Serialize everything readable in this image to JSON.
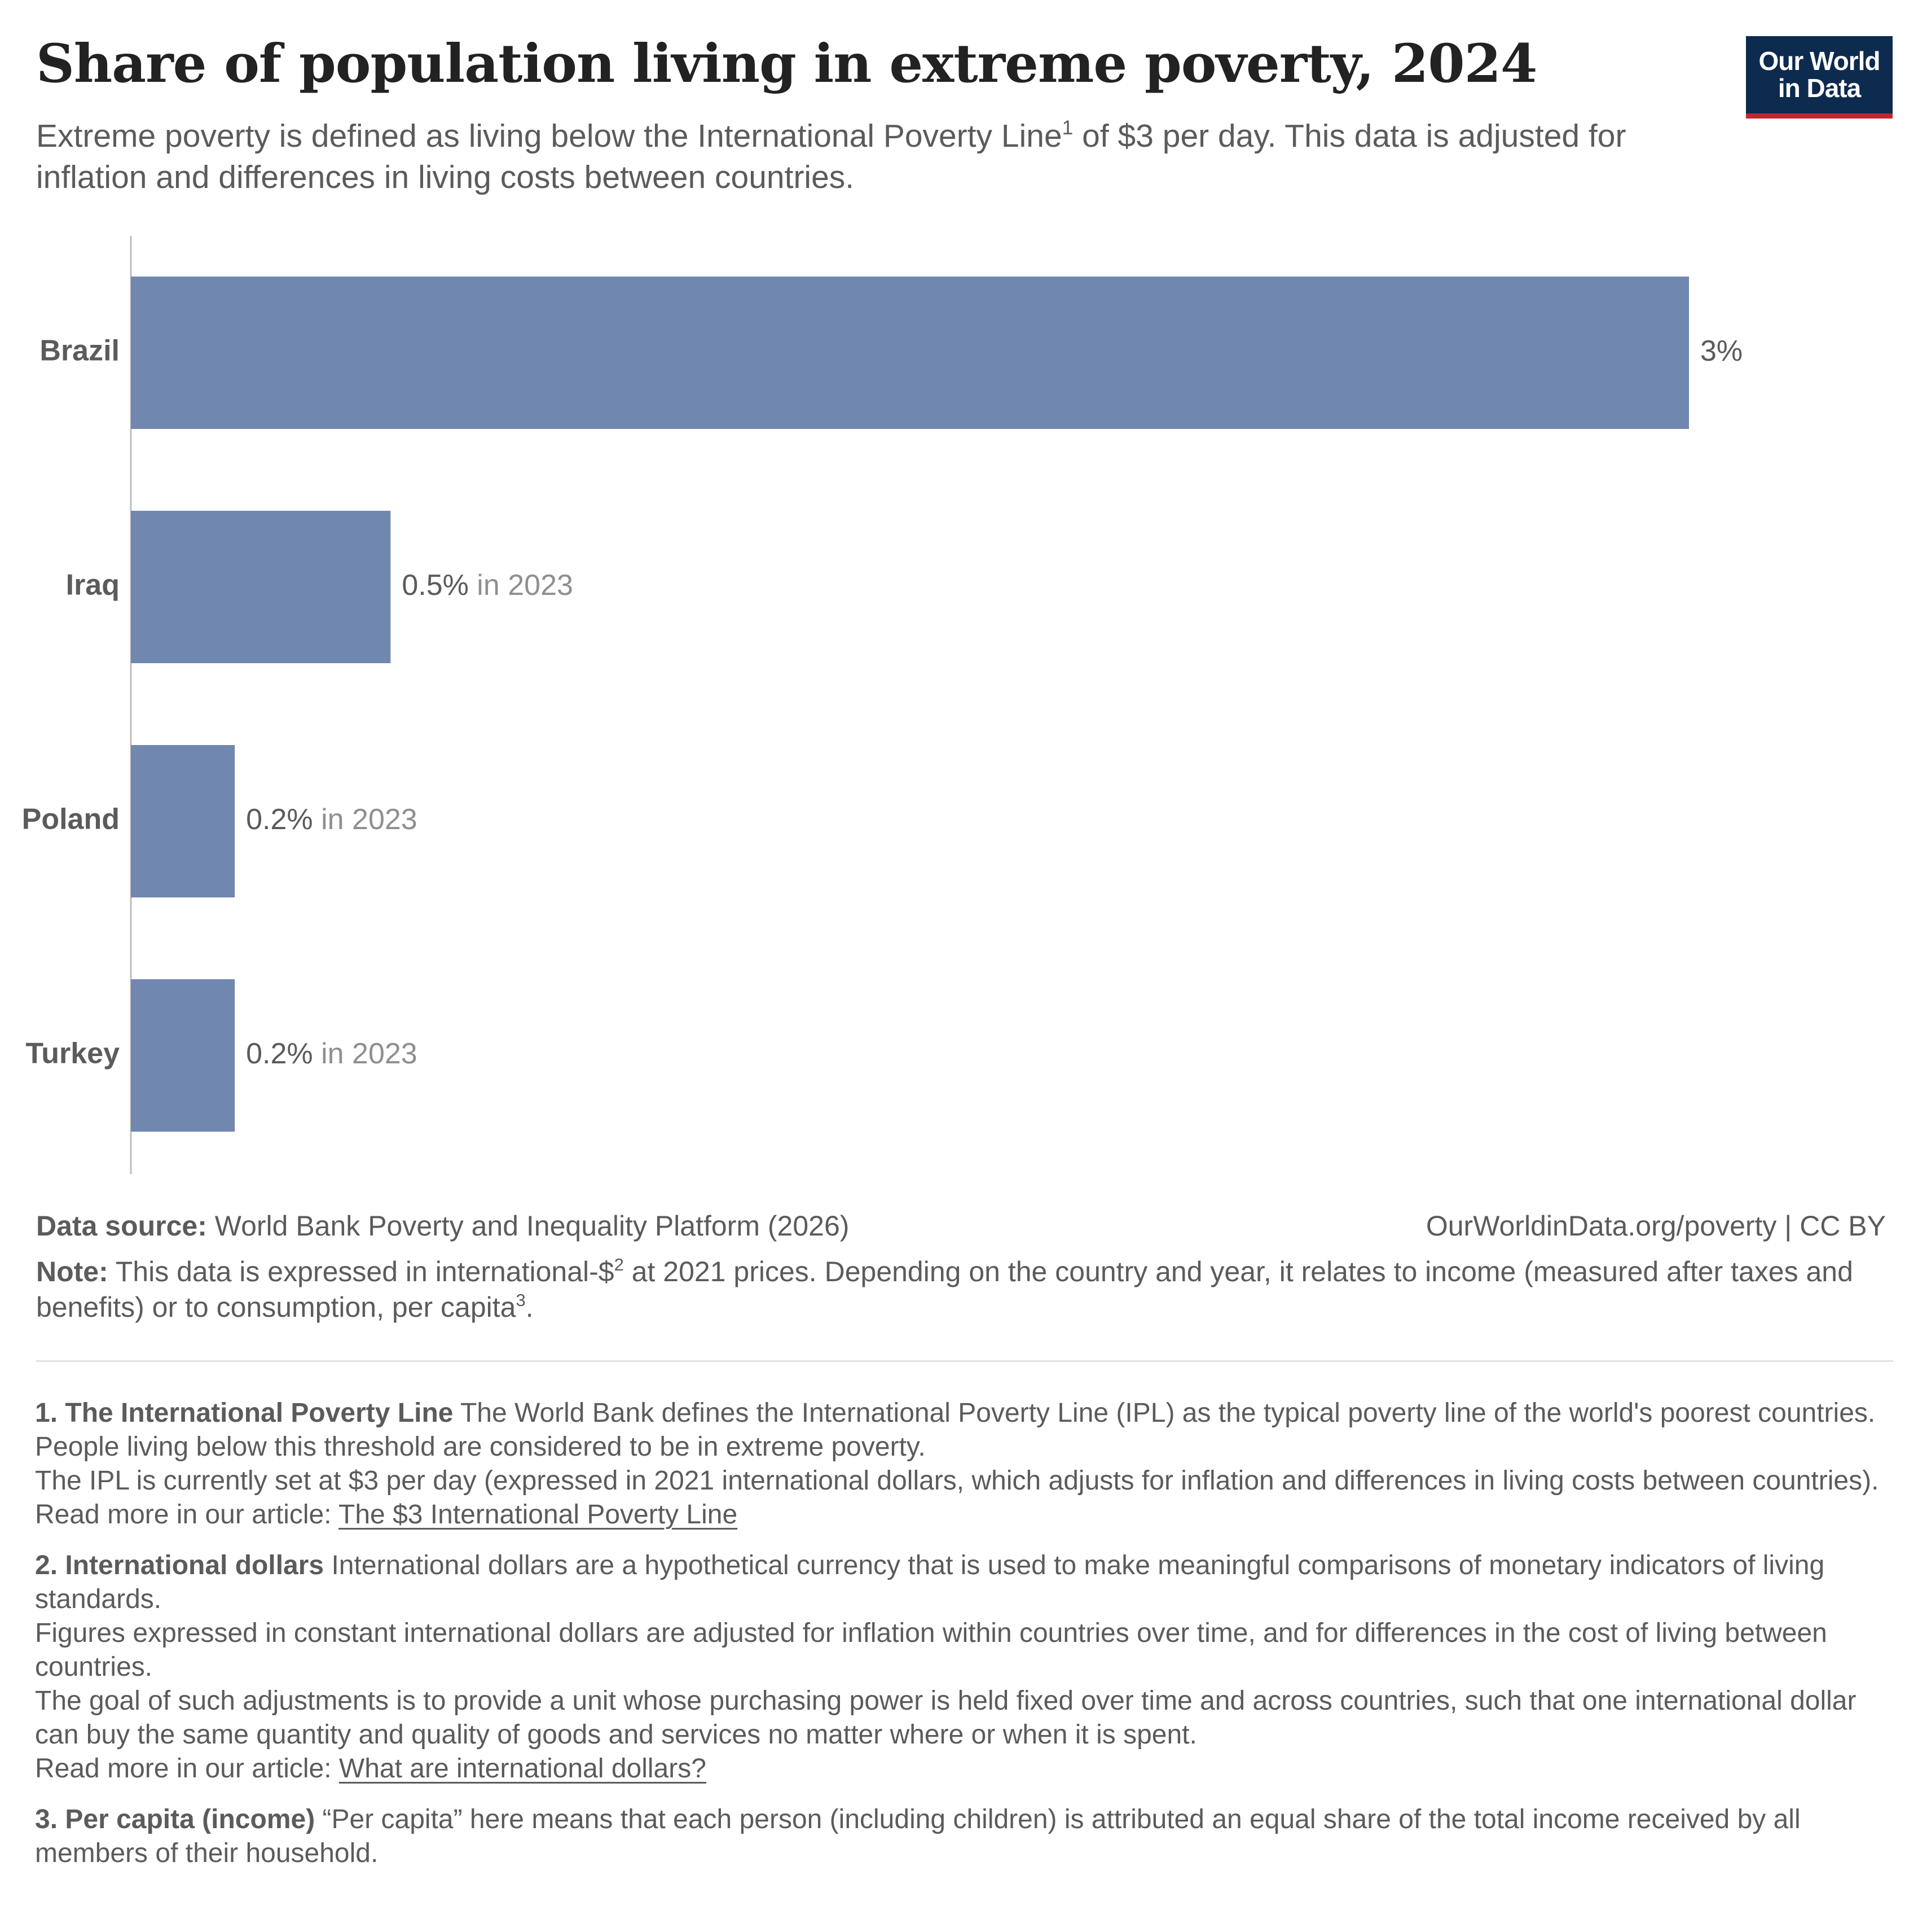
{
  "header": {
    "title": "Share of population living in extreme poverty, 2024",
    "subtitle_part1": "Extreme poverty is defined as living below the International Poverty Line",
    "subtitle_sup": "1",
    "subtitle_part2": " of $3 per day. This data is adjusted for inflation and differences in living costs between countries."
  },
  "logo": {
    "line1": "Our World",
    "line2": "in Data",
    "bg_color": "#0d2a4f",
    "accent_color": "#c1272d"
  },
  "chart_data": {
    "type": "bar",
    "orientation": "horizontal",
    "title": "Share of population living in extreme poverty, 2024",
    "categories": [
      "Brazil",
      "Iraq",
      "Poland",
      "Turkey"
    ],
    "values": [
      3,
      0.5,
      0.2,
      0.2
    ],
    "value_labels": [
      "3%",
      "0.5%",
      "0.2%",
      "0.2%"
    ],
    "year_notes": [
      "",
      "in 2023",
      "in 2023",
      "in 2023"
    ],
    "unit": "%",
    "bar_color": "#7087b0",
    "grid": false,
    "legend": "none"
  },
  "footer": {
    "source_label": "Data source:",
    "source_text": " World Bank Poverty and Inequality Platform (2026)",
    "url": "OurWorldinData.org/poverty | CC BY",
    "note_label": "Note:",
    "note_part1": " This data is expressed in international-$",
    "note_sup1": "2",
    "note_part2": " at 2021 prices. Depending on the country and year, it relates to income (measured after taxes and benefits) or to consumption, per capita",
    "note_sup2": "3",
    "note_part3": "."
  },
  "footnotes": [
    {
      "heading": "1. The International Poverty Line",
      "lines": [
        " The World Bank defines the International Poverty Line (IPL) as the typical poverty line of the world's poorest countries. People living below this threshold are considered to be in extreme poverty.",
        "The IPL is currently set at $3 per day (expressed in 2021 international dollars, which adjusts for inflation and differences in living costs between countries)."
      ],
      "read_more": "Read more in our article: ",
      "link_text": "The $3 International Poverty Line"
    },
    {
      "heading": "2. International dollars",
      "lines": [
        " International dollars are a hypothetical currency that is used to make meaningful comparisons of monetary indicators of living standards.",
        "Figures expressed in constant international dollars are adjusted for inflation within countries over time, and for differences in the cost of living between countries.",
        "The goal of such adjustments is to provide a unit whose purchasing power is held fixed over time and across countries, such that one international dollar can buy the same quantity and quality of goods and services no matter where or when it is spent."
      ],
      "read_more": "Read more in our article: ",
      "link_text": "What are international dollars?"
    },
    {
      "heading": "3. Per capita (income)",
      "lines": [
        " “Per capita” here means that each person (including children) is attributed an equal share of the total income received by all members of their household."
      ]
    }
  ]
}
